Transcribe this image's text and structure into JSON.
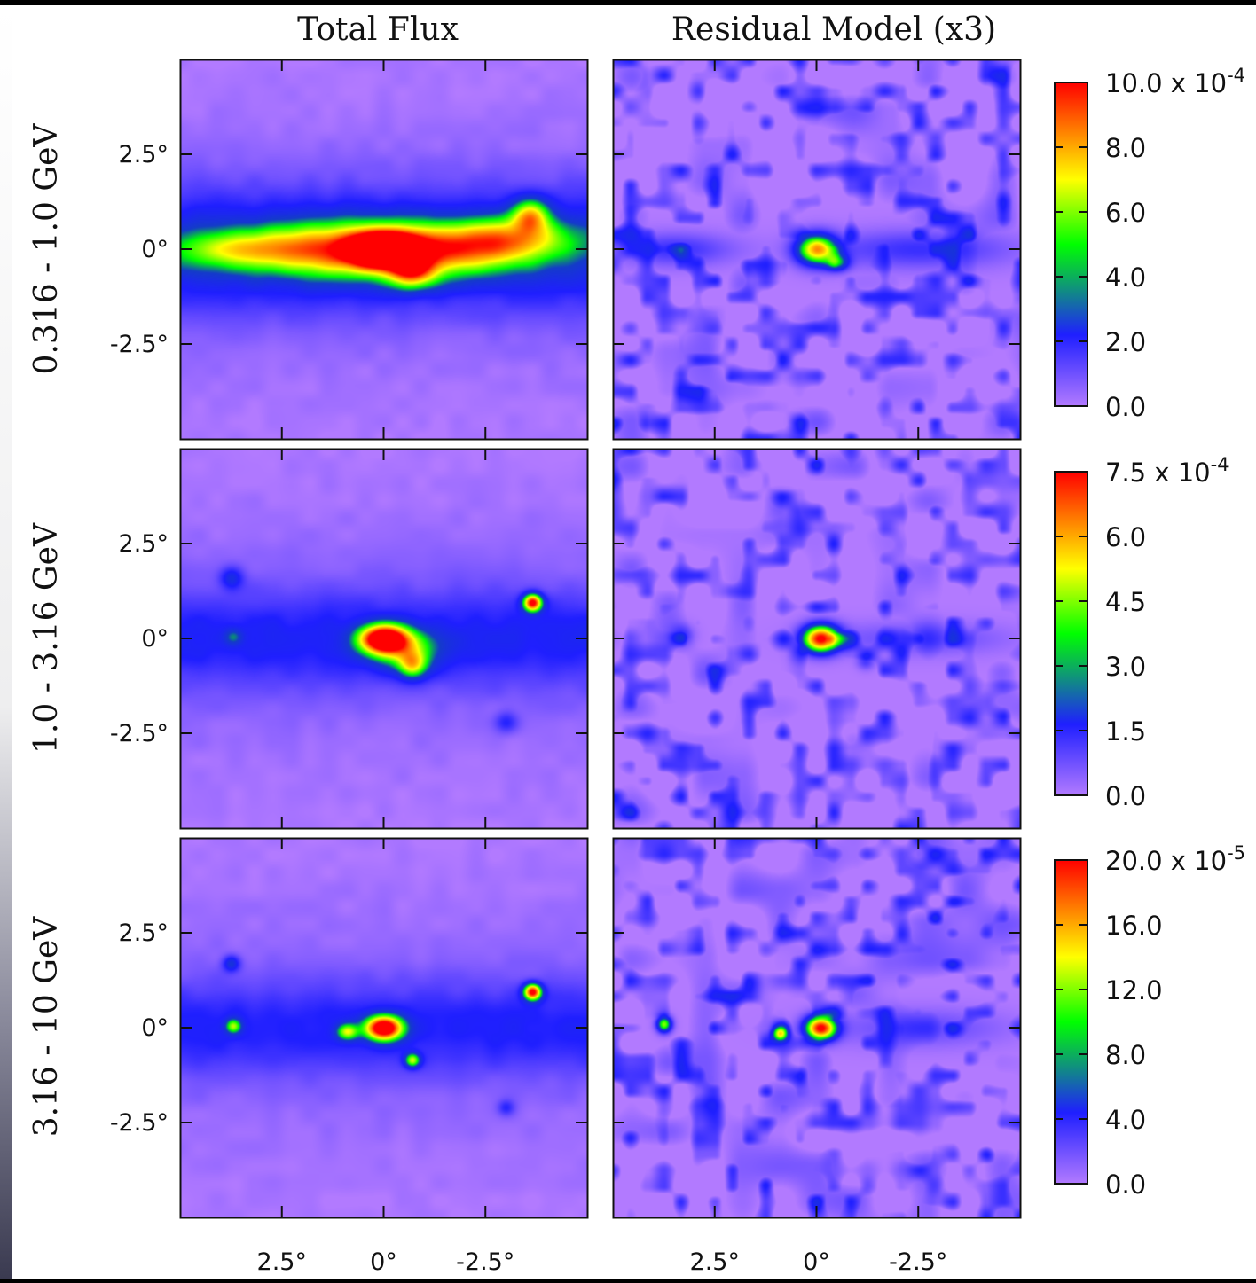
{
  "chart_data": {
    "type": "heatmap",
    "columns": [
      {
        "title": "Total Flux"
      },
      {
        "title": "Residual Model (x3)"
      }
    ],
    "rows": [
      {
        "label": "0.316 - 1.0 GeV",
        "colorbar": {
          "ticks": [
            "0.0",
            "2.0",
            "4.0",
            "6.0",
            "8.0"
          ],
          "top": "10.0 x 10",
          "exp": "-4",
          "range": [
            0,
            10.0
          ]
        }
      },
      {
        "label": "1.0 - 3.16 GeV",
        "colorbar": {
          "ticks": [
            "0.0",
            "1.5",
            "3.0",
            "4.5",
            "6.0"
          ],
          "top": "7.5 x 10",
          "exp": "-4",
          "range": [
            0,
            7.5
          ]
        }
      },
      {
        "label": "3.16 - 10 GeV",
        "colorbar": {
          "ticks": [
            "0.0",
            "4.0",
            "8.0",
            "12.0",
            "16.0"
          ],
          "top": "20.0 x 10",
          "exp": "-5",
          "range": [
            0,
            20.0
          ]
        }
      }
    ],
    "x_ticks": [
      "2.5°",
      "0°",
      "-2.5°"
    ],
    "y_ticks": [
      "2.5°",
      "0°",
      "-2.5°"
    ],
    "axis_range_deg": [
      -5,
      5
    ],
    "colormap": [
      "#b27aff",
      "#1f1fff",
      "#00ff00",
      "#ffff00",
      "#ff0000"
    ],
    "grid": false,
    "sources": {
      "total": [
        [
          {
            "x": 0,
            "y": 0,
            "sx": 0.55,
            "sy": 0.3,
            "a": 1.0
          },
          {
            "x": -0.7,
            "y": -0.6,
            "sx": 0.4,
            "sy": 0.3,
            "a": 0.5
          },
          {
            "x": 1.0,
            "y": 0.0,
            "sx": 1.4,
            "sy": 0.5,
            "a": 0.55
          },
          {
            "x": -1.5,
            "y": 0.0,
            "sx": 1.3,
            "sy": 0.45,
            "a": 0.5
          },
          {
            "x": -3.6,
            "y": 0.9,
            "sx": 0.3,
            "sy": 0.3,
            "a": 0.5
          },
          {
            "x": -3.2,
            "y": 0.3,
            "sx": 1.0,
            "sy": 0.4,
            "a": 0.4
          },
          {
            "x": 3.5,
            "y": 0.0,
            "sx": 1.2,
            "sy": 0.35,
            "a": 0.35
          }
        ],
        [
          {
            "x": 0,
            "y": 0,
            "sx": 0.42,
            "sy": 0.26,
            "a": 1.0
          },
          {
            "x": -0.7,
            "y": -0.7,
            "sx": 0.25,
            "sy": 0.25,
            "a": 0.45
          },
          {
            "x": -0.5,
            "y": -0.3,
            "sx": 0.6,
            "sy": 0.35,
            "a": 0.35
          },
          {
            "x": -3.65,
            "y": 0.95,
            "sx": 0.16,
            "sy": 0.16,
            "a": 0.9
          },
          {
            "x": 3.75,
            "y": 1.6,
            "sx": 0.2,
            "sy": 0.2,
            "a": 0.2
          },
          {
            "x": 3.7,
            "y": 0.05,
            "sx": 0.15,
            "sy": 0.15,
            "a": 0.18
          },
          {
            "x": -3.0,
            "y": -2.2,
            "sx": 0.2,
            "sy": 0.2,
            "a": 0.15
          }
        ],
        [
          {
            "x": 0,
            "y": 0,
            "sx": 0.32,
            "sy": 0.22,
            "a": 1.0
          },
          {
            "x": 0.9,
            "y": -0.1,
            "sx": 0.18,
            "sy": 0.15,
            "a": 0.45
          },
          {
            "x": -0.7,
            "y": -0.85,
            "sx": 0.13,
            "sy": 0.13,
            "a": 0.5
          },
          {
            "x": -3.65,
            "y": 0.95,
            "sx": 0.15,
            "sy": 0.15,
            "a": 0.9
          },
          {
            "x": 3.75,
            "y": 1.7,
            "sx": 0.15,
            "sy": 0.15,
            "a": 0.25
          },
          {
            "x": 3.7,
            "y": 0.05,
            "sx": 0.13,
            "sy": 0.13,
            "a": 0.4
          },
          {
            "x": -3.0,
            "y": -2.1,
            "sx": 0.15,
            "sy": 0.15,
            "a": 0.15
          }
        ]
      ],
      "residual": [
        [
          {
            "x": 0.0,
            "y": 0.0,
            "sx": 0.35,
            "sy": 0.28,
            "a": 0.75
          },
          {
            "x": -0.5,
            "y": -0.35,
            "sx": 0.2,
            "sy": 0.15,
            "a": 0.35
          },
          {
            "x": -2.5,
            "y": 0.0,
            "sx": 1.6,
            "sy": 0.35,
            "a": 0.18
          },
          {
            "x": 3.5,
            "y": 0.0,
            "sx": 1.0,
            "sy": 0.3,
            "a": 0.18
          }
        ],
        [
          {
            "x": -0.1,
            "y": 0.0,
            "sx": 0.32,
            "sy": 0.25,
            "a": 1.0
          },
          {
            "x": -1.2,
            "y": -0.6,
            "sx": 0.15,
            "sy": 0.15,
            "a": 0.15
          },
          {
            "x": 3.3,
            "y": 0.1,
            "sx": 0.2,
            "sy": 0.2,
            "a": 0.15
          },
          {
            "x": -2.5,
            "y": 0.0,
            "sx": 1.5,
            "sy": 0.3,
            "a": 0.12
          }
        ],
        [
          {
            "x": -0.1,
            "y": 0.0,
            "sx": 0.27,
            "sy": 0.22,
            "a": 1.0
          },
          {
            "x": 0.9,
            "y": -0.15,
            "sx": 0.13,
            "sy": 0.13,
            "a": 0.55
          },
          {
            "x": 3.75,
            "y": 0.1,
            "sx": 0.13,
            "sy": 0.15,
            "a": 0.6
          },
          {
            "x": -2.5,
            "y": 0.0,
            "sx": 1.5,
            "sy": 0.35,
            "a": 0.12
          }
        ]
      ]
    }
  }
}
